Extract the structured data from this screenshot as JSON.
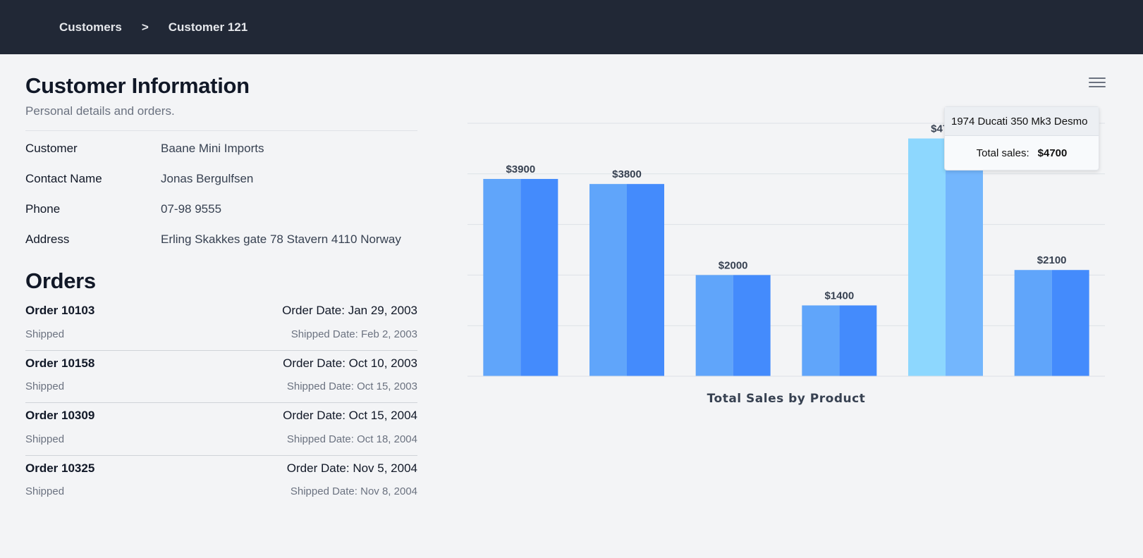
{
  "breadcrumb": {
    "items": [
      "Customers",
      "Customer 121"
    ],
    "separator": ">"
  },
  "customer_info": {
    "title": "Customer Information",
    "subtitle": "Personal details and orders.",
    "fields": [
      {
        "label": "Customer",
        "value": "Baane Mini Imports"
      },
      {
        "label": "Contact Name",
        "value": "Jonas Bergulfsen"
      },
      {
        "label": "Phone",
        "value": "07-98 9555"
      },
      {
        "label": "Address",
        "value": "Erling Skakkes gate 78 Stavern 4110 Norway"
      }
    ]
  },
  "orders": {
    "title": "Orders",
    "items": [
      {
        "id": "Order 10103",
        "order_date": "Order Date: Jan 29, 2003",
        "status": "Shipped",
        "shipped_date": "Shipped Date: Feb 2, 2003"
      },
      {
        "id": "Order 10158",
        "order_date": "Order Date: Oct 10, 2003",
        "status": "Shipped",
        "shipped_date": "Shipped Date: Oct 15, 2003"
      },
      {
        "id": "Order 10309",
        "order_date": "Order Date: Oct 15, 2004",
        "status": "Shipped",
        "shipped_date": "Shipped Date: Oct 18, 2004"
      },
      {
        "id": "Order 10325",
        "order_date": "Order Date: Nov 5, 2004",
        "status": "Shipped",
        "shipped_date": "Shipped Date: Nov 8, 2004"
      }
    ]
  },
  "chart_data": {
    "type": "bar",
    "title": "Total Sales by Product",
    "categories": [
      "",
      "",
      "",
      "",
      "1974 Ducati 350 Mk3 Desmo",
      ""
    ],
    "values": [
      3900,
      3800,
      2000,
      1400,
      4700,
      2100
    ],
    "data_labels": [
      "$3900",
      "$3800",
      "$2000",
      "$1400",
      "$4700",
      "$2100"
    ],
    "ylim": [
      0,
      5000
    ],
    "grid": true,
    "highlighted_index": 4,
    "colors": {
      "bar_left": "#60a5fa",
      "bar_right": "#448bfc",
      "highlight_left": "#8dd7fe",
      "highlight_right": "#73b6fd",
      "grid": "#dde1e6",
      "label": "#374151"
    }
  },
  "tooltip": {
    "title": "1974 Ducati 350 Mk3 Desmo",
    "label": "Total sales:",
    "value": "$4700"
  },
  "chart_menu": {
    "icon": "hamburger-menu-icon"
  }
}
